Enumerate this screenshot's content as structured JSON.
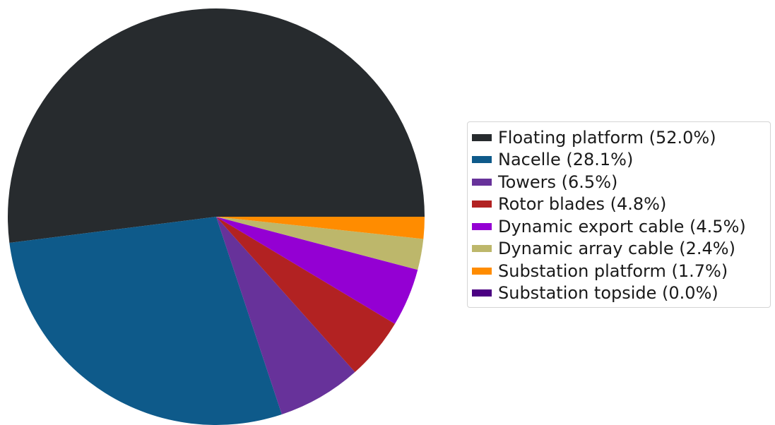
{
  "chart_data": {
    "type": "pie",
    "start_angle_deg": 0,
    "direction": "counterclockwise",
    "legend_position": "right",
    "slices": [
      {
        "label": "Floating platform (52.0%)",
        "value": 52.0,
        "color": "#272b2e"
      },
      {
        "label": "Nacelle (28.1%)",
        "value": 28.1,
        "color": "#0e5a8a"
      },
      {
        "label": "Towers (6.5%)",
        "value": 6.5,
        "color": "#67329a"
      },
      {
        "label": "Rotor blades (4.8%)",
        "value": 4.8,
        "color": "#b22222"
      },
      {
        "label": "Dynamic export cable (4.5%)",
        "value": 4.5,
        "color": "#9400d3"
      },
      {
        "label": "Dynamic array cable (2.4%)",
        "value": 2.4,
        "color": "#bdb76b"
      },
      {
        "label": "Substation platform (1.7%)",
        "value": 1.7,
        "color": "#ff8c00"
      },
      {
        "label": "Substation topside (0.0%)",
        "value": 0.0,
        "color": "#4b0082"
      }
    ]
  }
}
